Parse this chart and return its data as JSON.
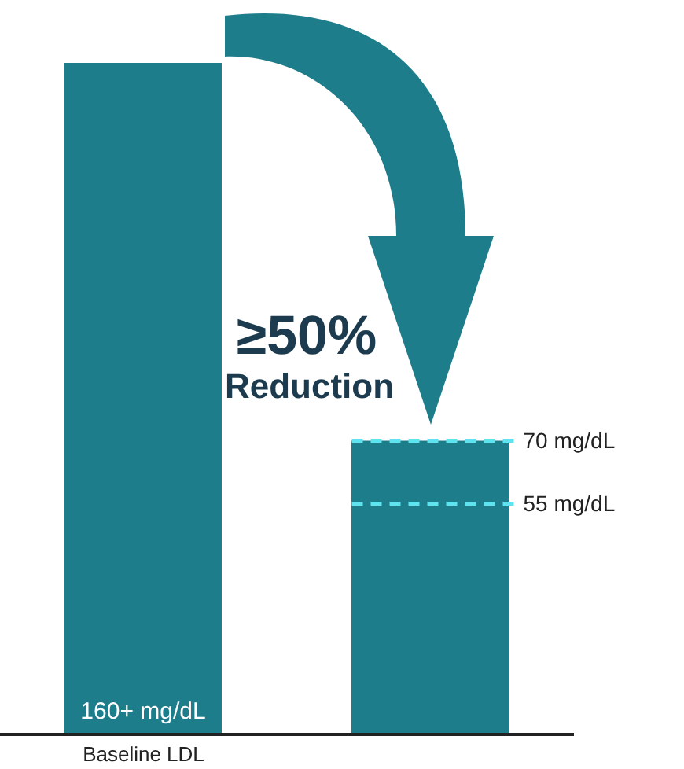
{
  "chart_data": {
    "type": "bar",
    "categories": [
      "Baseline LDL",
      null
    ],
    "values": [
      160,
      70
    ],
    "color": "#1e7d8a",
    "ylim": [
      0,
      175
    ],
    "value_labels": [
      "160+ mg/dL",
      null
    ],
    "ref_lines": [
      {
        "axis": "y",
        "value": 70,
        "label": "70 mg/dL",
        "color": "#5fe3ee",
        "line_style": "dashed"
      },
      {
        "axis": "y",
        "value": 55,
        "label": "55 mg/dL",
        "color": "#5fe3ee",
        "line_style": "dashed"
      }
    ],
    "annotations": [
      "≥50% Reduction"
    ]
  }
}
